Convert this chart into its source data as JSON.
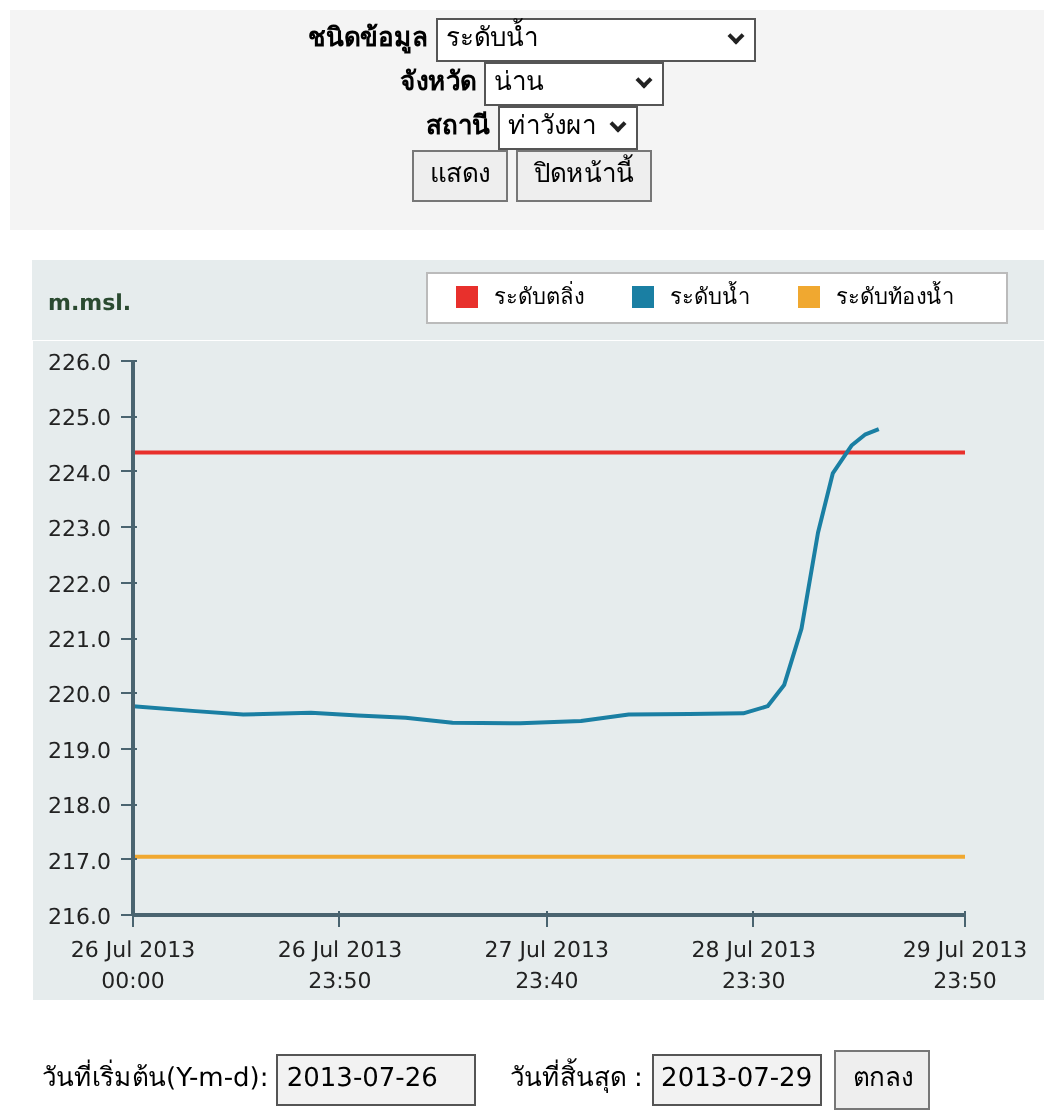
{
  "chart_data": {
    "type": "line",
    "ylabel": "m.msl.",
    "annotations": [
      "ชนิดข้อมูล",
      "ระดับน้ำ",
      "จังหวัด",
      "น่าน",
      "สถานี",
      "ท่าวังผา",
      "แสดง",
      "ปิดหน้านี้",
      "วันที่เริ่มต้น(Y-m-d):",
      "2013-07-26",
      "วันที่สิ้นสุด  :",
      "2013-07-29",
      "ตกลง"
    ],
    "series": [
      {
        "name": "ระดับตลิ่ง",
        "color": "#e8302c",
        "x": [
          "2013-07-26T00:00",
          "2013-07-29T23:50"
        ],
        "values": [
          224.35,
          224.35
        ]
      },
      {
        "name": "ระดับน้ำ",
        "color": "#1a7fa3",
        "x": [
          "2013-07-26T00:00",
          "2013-07-26T07:12",
          "2013-07-26T12:42",
          "2013-07-26T20:30",
          "2013-07-27T01:54",
          "2013-07-27T07:24",
          "2013-07-27T12:48",
          "2013-07-27T20:36",
          "2013-07-28T03:36",
          "2013-07-28T09:06",
          "2013-07-28T16:06",
          "2013-07-28T22:18",
          "2013-07-29T01:06",
          "2013-07-29T03:00",
          "2013-07-29T05:00",
          "2013-07-29T06:54",
          "2013-07-29T08:36",
          "2013-07-29T10:48",
          "2013-07-29T12:18",
          "2013-07-29T13:54"
        ],
        "values": [
          219.77,
          219.68,
          219.62,
          219.65,
          219.6,
          219.56,
          219.47,
          219.46,
          219.5,
          219.62,
          219.63,
          219.64,
          219.77,
          220.15,
          221.17,
          222.9,
          223.97,
          224.48,
          224.67,
          224.77
        ]
      },
      {
        "name": "ระดับท้องน้ำ",
        "color": "#f0a830",
        "x": [
          "2013-07-26T00:00",
          "2013-07-29T23:50"
        ],
        "values": [
          217.05,
          217.05
        ]
      }
    ],
    "xlim": [
      "2013-07-26T00:00",
      "2013-07-29T23:50"
    ],
    "xticks": [
      {
        "value": "2013-07-26T00:00",
        "label": "26 Jul 2013\n00:00"
      },
      {
        "value": "2013-07-26T23:50",
        "label": "26 Jul 2013\n23:50"
      },
      {
        "value": "2013-07-27T23:40",
        "label": "27 Jul 2013\n23:40"
      },
      {
        "value": "2013-07-28T23:30",
        "label": "28 Jul 2013\n23:30"
      },
      {
        "value": "2013-07-29T23:50",
        "label": "29 Jul 2013\n23:50"
      }
    ],
    "ylim": [
      216,
      226
    ],
    "yticks": [
      {
        "value": 216,
        "label": "216.0"
      },
      {
        "value": 217,
        "label": "217.0"
      },
      {
        "value": 218,
        "label": "218.0"
      },
      {
        "value": 219,
        "label": "219.0"
      },
      {
        "value": 220,
        "label": "220.0"
      },
      {
        "value": 221,
        "label": "221.0"
      },
      {
        "value": 222,
        "label": "222.0"
      },
      {
        "value": 223,
        "label": "223.0"
      },
      {
        "value": 224,
        "label": "224.0"
      },
      {
        "value": 225,
        "label": "225.0"
      },
      {
        "value": 226,
        "label": "226.0"
      }
    ],
    "grid": false,
    "legend": "top right",
    "marker": "none",
    "line_style": "solid"
  }
}
